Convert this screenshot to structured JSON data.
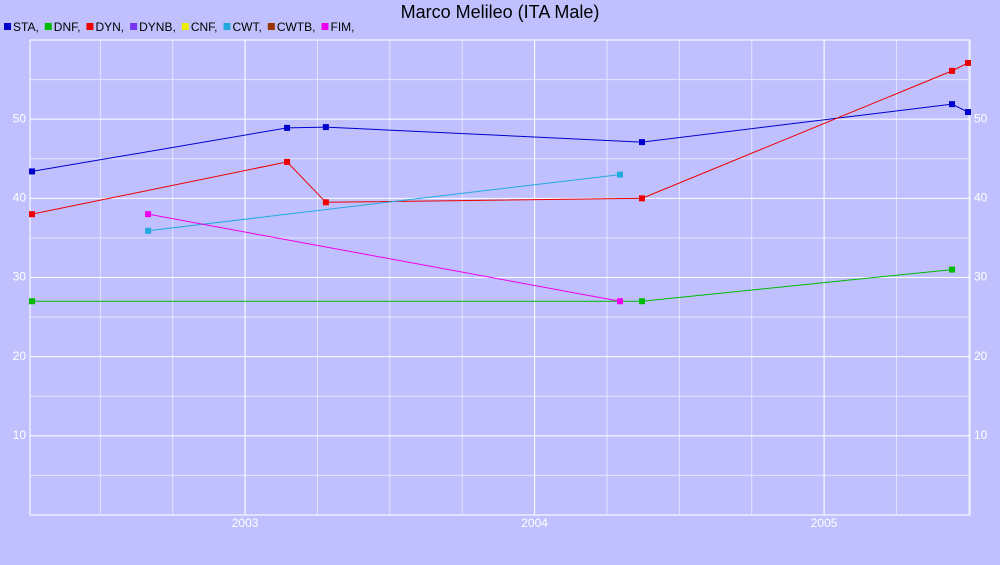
{
  "chart_data": {
    "type": "line",
    "title": "Marco Melileo (ITA Male)",
    "xlim": [
      2002.257,
      2005.504
    ],
    "xticks": [
      2003,
      2004,
      2005
    ],
    "ylim": [
      0,
      60
    ],
    "yticks": [
      10,
      20,
      30,
      40,
      50
    ],
    "grid": true,
    "legend": "top-left",
    "series": [
      {
        "name": "STA,",
        "color": "#0000cc",
        "x": [
          2002.264,
          2003.145,
          2003.279,
          2004.371,
          2005.442,
          2005.497
        ],
        "values": [
          43.4,
          48.9,
          49.0,
          47.1,
          51.9,
          50.9
        ]
      },
      {
        "name": "DNF,",
        "color": "#00bb00",
        "x": [
          2002.264,
          2004.371,
          2005.442
        ],
        "values": [
          27.0,
          27.0,
          31.0
        ]
      },
      {
        "name": "DYN,",
        "color": "#ee0000",
        "x": [
          2002.264,
          2003.145,
          2003.279,
          2004.371,
          2005.442,
          2005.497
        ],
        "values": [
          38.0,
          44.6,
          39.5,
          40.0,
          56.1,
          57.1
        ]
      },
      {
        "name": "DYNB,",
        "color": "#7733ee",
        "x": [],
        "values": []
      },
      {
        "name": "CNF,",
        "color": "#eeee00",
        "x": [],
        "values": []
      },
      {
        "name": "CWT,",
        "color": "#22aadd",
        "x": [
          2002.665,
          2004.295
        ],
        "values": [
          35.9,
          43.0
        ]
      },
      {
        "name": "CWTB,",
        "color": "#993300",
        "x": [],
        "values": []
      },
      {
        "name": "FIM,",
        "color": "#ee00ee",
        "x": [
          2002.665,
          2004.295
        ],
        "values": [
          38.0,
          27.0
        ]
      }
    ]
  }
}
